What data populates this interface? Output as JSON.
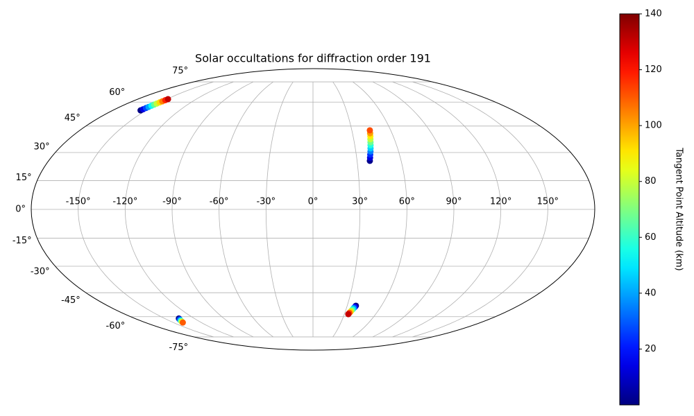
{
  "chart_data": {
    "type": "scatter",
    "projection": "mollweide",
    "title": "Solar occultations for diffraction order 191",
    "xticks": [
      {
        "value": -150,
        "label": "-150°"
      },
      {
        "value": -120,
        "label": "-120°"
      },
      {
        "value": -90,
        "label": "-90°"
      },
      {
        "value": -60,
        "label": "-60°"
      },
      {
        "value": -30,
        "label": "-30°"
      },
      {
        "value": 0,
        "label": "0°"
      },
      {
        "value": 30,
        "label": "30°"
      },
      {
        "value": 60,
        "label": "60°"
      },
      {
        "value": 90,
        "label": "90°"
      },
      {
        "value": 120,
        "label": "120°"
      },
      {
        "value": 150,
        "label": "150°"
      }
    ],
    "yticks": [
      {
        "value": -75,
        "label": "-75°"
      },
      {
        "value": -60,
        "label": "-60°"
      },
      {
        "value": -45,
        "label": "-45°"
      },
      {
        "value": -30,
        "label": "-30°"
      },
      {
        "value": -15,
        "label": "-15°"
      },
      {
        "value": 0,
        "label": "0°"
      },
      {
        "value": 15,
        "label": "15°"
      },
      {
        "value": 30,
        "label": "30°"
      },
      {
        "value": 45,
        "label": "45°"
      },
      {
        "value": 60,
        "label": "60°"
      },
      {
        "value": 75,
        "label": "75°"
      }
    ],
    "grid": true,
    "colormap": "jet",
    "colorbar": {
      "label": "Tangent Point Altitude (km)",
      "clim": [
        0,
        140
      ],
      "ticks": [
        20,
        40,
        60,
        80,
        100,
        120,
        140
      ]
    },
    "series": [
      {
        "x": [
          -155,
          -154.4,
          -153.8,
          -153.2,
          -152.6,
          -152,
          -151.4,
          -150.8,
          -150.2,
          -149.6,
          -149
        ],
        "y": [
          54.6,
          55.3,
          56.1,
          56.8,
          57.6,
          58.3,
          59.0,
          59.8,
          60.5,
          61.3,
          62
        ],
        "values": [
          1,
          14,
          27,
          40,
          53,
          66,
          79,
          92,
          105,
          118,
          131
        ]
      },
      {
        "x": [
          38.7,
          39.2,
          39.7,
          40.3,
          40.8,
          41.3,
          41.8,
          42.3,
          42.9,
          43.4,
          43.9
        ],
        "y": [
          25.5,
          27.2,
          28.9,
          30.6,
          32.3,
          34.0,
          35.7,
          37.4,
          39.1,
          40.8,
          42.5
        ],
        "values": [
          2,
          13,
          24,
          35,
          46,
          57,
          68,
          79,
          90,
          101,
          112
        ]
      },
      {
        "x": [
          37.6,
          37.1,
          36.5,
          36.0,
          35.4,
          34.9,
          34.3,
          33.8
        ],
        "y": [
          -52.9,
          -53.7,
          -54.4,
          -55.2,
          -56.0,
          -56.8,
          -57.5,
          -58.3
        ],
        "values": [
          1,
          19,
          38,
          56,
          75,
          93,
          112,
          130
        ]
      },
      {
        "x": [
          -135.6,
          -136.7,
          -137.7,
          -138.8,
          -139.8
        ],
        "y": [
          -61.2,
          -61.9,
          -62.6,
          -63.3,
          -64
        ],
        "values": [
          1,
          28,
          55,
          82,
          110
        ]
      }
    ]
  }
}
